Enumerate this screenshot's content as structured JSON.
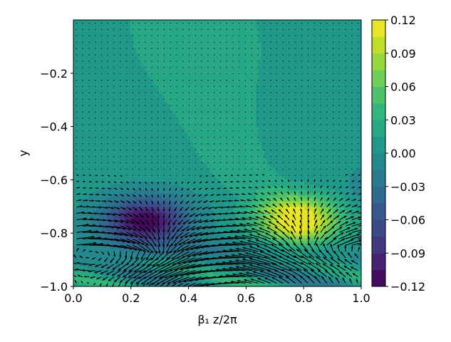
{
  "chart_data": {
    "type": "heatmap",
    "subtype": "filled-contour-with-quiver",
    "xlabel": "β₁ z/2π",
    "ylabel": "y",
    "xlim": [
      0.0,
      1.0
    ],
    "ylim": [
      -1.0,
      0.0
    ],
    "x_ticks": [
      "0.0",
      "0.2",
      "0.4",
      "0.6",
      "0.8",
      "1.0"
    ],
    "y_ticks": [
      "−0.2",
      "−0.4",
      "−0.6",
      "−0.8",
      "−1.0"
    ],
    "colorbar": {
      "colormap": "viridis",
      "levels": [
        -0.12,
        -0.105,
        -0.09,
        -0.075,
        -0.06,
        -0.045,
        -0.03,
        -0.015,
        0.0,
        0.015,
        0.03,
        0.045,
        0.06,
        0.075,
        0.09,
        0.105,
        0.12
      ],
      "ticks": [
        "−0.12",
        "−0.09",
        "−0.06",
        "−0.03",
        "0.00",
        "0.03",
        "0.06",
        "0.09",
        "0.12"
      ],
      "min": -0.12,
      "max": 0.12
    },
    "features": [
      {
        "kind": "minimum",
        "x": 0.25,
        "y": -0.76,
        "value": -0.12
      },
      {
        "kind": "maximum",
        "x": 0.78,
        "y": -0.76,
        "value": 0.12
      },
      {
        "kind": "positive-tongue",
        "from": [
          0.78,
          -0.7
        ],
        "to": [
          0.3,
          0.0
        ],
        "value": 0.02
      },
      {
        "kind": "near-wall-oscillation",
        "y_range": [
          -1.0,
          -0.85
        ],
        "value_range": [
          -0.045,
          0.03
        ]
      }
    ],
    "quiver": {
      "region": "strong near y between -1.0 and -0.6, negligible above -0.55"
    },
    "colors": {
      "viridis_low": "#440154",
      "viridis_mid": "#21918c",
      "viridis_high": "#fde725",
      "arrow": "#000000"
    }
  }
}
